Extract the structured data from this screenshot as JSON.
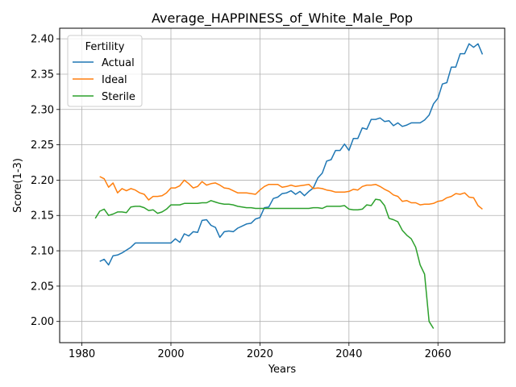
{
  "chart_data": {
    "type": "line",
    "title": "Average_HAPPINESS_of_White_Male_Pop",
    "xlabel": "Years",
    "ylabel": "Score(1-3)",
    "xlim": [
      1975,
      2075
    ],
    "ylim": [
      1.97,
      2.415
    ],
    "xticks": [
      1980,
      2000,
      2020,
      2040,
      2060
    ],
    "yticks": [
      2.0,
      2.05,
      2.1,
      2.15,
      2.2,
      2.25,
      2.3,
      2.35,
      2.4
    ],
    "ytick_labels": [
      "2.00",
      "2.05",
      "2.10",
      "2.15",
      "2.20",
      "2.25",
      "2.30",
      "2.35",
      "2.40"
    ],
    "grid": true,
    "legend": {
      "title": "Fertility",
      "position": "top-left"
    },
    "series": [
      {
        "name": "Actual",
        "color": "#1f77b4",
        "x": [
          1984,
          1985,
          1986,
          1987,
          1988,
          1989,
          1990,
          1991,
          1992,
          1993,
          1994,
          1995,
          1996,
          1997,
          1998,
          1999,
          2000,
          2001,
          2002,
          2003,
          2004,
          2005,
          2006,
          2007,
          2008,
          2009,
          2010,
          2011,
          2012,
          2013,
          2014,
          2015,
          2016,
          2017,
          2018,
          2019,
          2020,
          2021,
          2022,
          2023,
          2024,
          2025,
          2026,
          2027,
          2028,
          2029,
          2030,
          2031,
          2032,
          2033,
          2034,
          2035,
          2036,
          2037,
          2038,
          2039,
          2040,
          2041,
          2042,
          2043,
          2044,
          2045,
          2046,
          2047,
          2048,
          2049,
          2050,
          2051,
          2052,
          2053,
          2054,
          2055,
          2056,
          2057,
          2058,
          2059,
          2060,
          2061,
          2062,
          2063,
          2064,
          2065,
          2066,
          2067,
          2068,
          2069,
          2070
        ],
        "values": [
          2.085,
          2.088,
          2.08,
          2.093,
          2.094,
          2.097,
          2.101,
          2.105,
          2.111,
          2.111,
          2.111,
          2.111,
          2.111,
          2.111,
          2.111,
          2.111,
          2.111,
          2.117,
          2.112,
          2.124,
          2.121,
          2.127,
          2.126,
          2.143,
          2.144,
          2.136,
          2.133,
          2.119,
          2.127,
          2.128,
          2.127,
          2.132,
          2.135,
          2.138,
          2.139,
          2.145,
          2.147,
          2.161,
          2.162,
          2.174,
          2.176,
          2.181,
          2.182,
          2.185,
          2.18,
          2.184,
          2.178,
          2.184,
          2.189,
          2.203,
          2.21,
          2.227,
          2.229,
          2.242,
          2.242,
          2.251,
          2.242,
          2.259,
          2.259,
          2.274,
          2.272,
          2.286,
          2.286,
          2.288,
          2.283,
          2.284,
          2.277,
          2.281,
          2.276,
          2.278,
          2.281,
          2.281,
          2.281,
          2.285,
          2.292,
          2.308,
          2.316,
          2.336,
          2.338,
          2.36,
          2.36,
          2.379,
          2.379,
          2.393,
          2.388,
          2.393,
          2.378
        ]
      },
      {
        "name": "Ideal",
        "color": "#ff7f0e",
        "x": [
          1984,
          1985,
          1986,
          1987,
          1988,
          1989,
          1990,
          1991,
          1992,
          1993,
          1994,
          1995,
          1996,
          1997,
          1998,
          1999,
          2000,
          2001,
          2002,
          2003,
          2004,
          2005,
          2006,
          2007,
          2008,
          2009,
          2010,
          2011,
          2012,
          2013,
          2014,
          2015,
          2016,
          2017,
          2018,
          2019,
          2020,
          2021,
          2022,
          2023,
          2024,
          2025,
          2026,
          2027,
          2028,
          2029,
          2030,
          2031,
          2032,
          2033,
          2034,
          2035,
          2036,
          2037,
          2038,
          2039,
          2040,
          2041,
          2042,
          2043,
          2044,
          2045,
          2046,
          2047,
          2048,
          2049,
          2050,
          2051,
          2052,
          2053,
          2054,
          2055,
          2056,
          2057,
          2058,
          2059,
          2060,
          2061,
          2062,
          2063,
          2064,
          2065,
          2066,
          2067,
          2068,
          2069,
          2070
        ],
        "values": [
          2.205,
          2.202,
          2.19,
          2.196,
          2.182,
          2.188,
          2.185,
          2.188,
          2.186,
          2.182,
          2.18,
          2.172,
          2.177,
          2.177,
          2.178,
          2.182,
          2.189,
          2.189,
          2.192,
          2.2,
          2.195,
          2.189,
          2.191,
          2.198,
          2.193,
          2.195,
          2.196,
          2.193,
          2.189,
          2.188,
          2.185,
          2.182,
          2.182,
          2.182,
          2.181,
          2.18,
          2.186,
          2.191,
          2.194,
          2.194,
          2.194,
          2.19,
          2.191,
          2.193,
          2.191,
          2.192,
          2.193,
          2.194,
          2.188,
          2.189,
          2.188,
          2.186,
          2.185,
          2.183,
          2.183,
          2.183,
          2.184,
          2.187,
          2.186,
          2.191,
          2.193,
          2.193,
          2.194,
          2.191,
          2.187,
          2.184,
          2.179,
          2.177,
          2.17,
          2.171,
          2.168,
          2.168,
          2.165,
          2.166,
          2.166,
          2.167,
          2.17,
          2.171,
          2.175,
          2.177,
          2.181,
          2.18,
          2.182,
          2.176,
          2.175,
          2.164,
          2.159
        ]
      },
      {
        "name": "Sterile",
        "color": "#2ca02c",
        "x": [
          1983,
          1984,
          1985,
          1986,
          1987,
          1988,
          1989,
          1990,
          1991,
          1992,
          1993,
          1994,
          1995,
          1996,
          1997,
          1998,
          1999,
          2000,
          2001,
          2002,
          2003,
          2004,
          2005,
          2006,
          2007,
          2008,
          2009,
          2010,
          2011,
          2012,
          2013,
          2014,
          2015,
          2016,
          2017,
          2018,
          2019,
          2020,
          2021,
          2022,
          2023,
          2024,
          2025,
          2026,
          2027,
          2028,
          2029,
          2030,
          2031,
          2032,
          2033,
          2034,
          2035,
          2036,
          2037,
          2038,
          2039,
          2040,
          2041,
          2042,
          2043,
          2044,
          2045,
          2046,
          2047,
          2048,
          2049,
          2050,
          2051,
          2052,
          2053,
          2054,
          2055,
          2056,
          2057,
          2058,
          2059
        ],
        "values": [
          2.146,
          2.156,
          2.159,
          2.15,
          2.152,
          2.155,
          2.155,
          2.154,
          2.162,
          2.163,
          2.163,
          2.161,
          2.157,
          2.158,
          2.153,
          2.155,
          2.159,
          2.165,
          2.165,
          2.165,
          2.167,
          2.167,
          2.167,
          2.167,
          2.168,
          2.168,
          2.171,
          2.169,
          2.167,
          2.166,
          2.166,
          2.165,
          2.163,
          2.162,
          2.161,
          2.161,
          2.16,
          2.16,
          2.16,
          2.16,
          2.16,
          2.16,
          2.16,
          2.16,
          2.16,
          2.16,
          2.16,
          2.16,
          2.16,
          2.161,
          2.161,
          2.16,
          2.163,
          2.163,
          2.163,
          2.163,
          2.164,
          2.159,
          2.158,
          2.158,
          2.159,
          2.165,
          2.164,
          2.173,
          2.172,
          2.164,
          2.146,
          2.144,
          2.141,
          2.129,
          2.122,
          2.117,
          2.105,
          2.08,
          2.067,
          2.0,
          1.99
        ]
      }
    ]
  }
}
